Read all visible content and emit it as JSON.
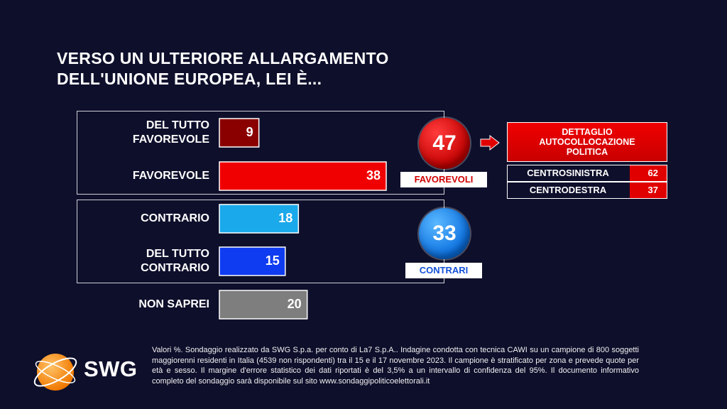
{
  "title": {
    "line1": "VERSO UN ULTERIORE ALLARGAMENTO",
    "line2": "DELL'UNIONE EUROPEA, LEI È..."
  },
  "chart_data": {
    "type": "bar",
    "orientation": "horizontal",
    "categories": [
      "DEL TUTTO FAVOREVOLE",
      "FAVOREVOLE",
      "CONTRARIO",
      "DEL TUTTO CONTRARIO",
      "NON SAPREI"
    ],
    "category_lines": [
      [
        "DEL TUTTO",
        "FAVOREVOLE"
      ],
      [
        "FAVOREVOLE"
      ],
      [
        "CONTRARIO"
      ],
      [
        "DEL TUTTO",
        "CONTRARIO"
      ],
      [
        "NON SAPREI"
      ]
    ],
    "values": [
      9,
      38,
      18,
      15,
      20
    ],
    "colors": [
      "#8a0000",
      "#f00000",
      "#1aa9ea",
      "#0f3cf0",
      "#7e7e7e"
    ],
    "unit": "%",
    "xlim": [
      0,
      38
    ]
  },
  "summary": {
    "favorevoli": {
      "value": "47",
      "label": "FAVOREVOLI"
    },
    "contrari": {
      "value": "33",
      "label": "CONTRARI"
    }
  },
  "detail": {
    "title_lines": [
      "DETTAGLIO",
      "AUTOCOLLOCAZIONE",
      "POLITICA"
    ],
    "rows": [
      {
        "label": "CENTROSINISTRA",
        "value": "62"
      },
      {
        "label": "CENTRODESTRA",
        "value": "37"
      }
    ]
  },
  "footnote": "Valori %. Sondaggio realizzato da SWG S.p.a. per conto di La7 S.p.A.. Indagine condotta con tecnica CAWI su un campione di 800 soggetti maggiorenni residenti in Italia (4539 non rispondenti) tra il 15 e il 17 novembre 2023. Il campione è stratificato per zona e prevede quote per età e sesso. Il margine d'errore statistico dei dati riportati è del 3,5% a un intervallo di confidenza del 95%. Il documento informativo completo del sondaggio sarà disponibile sul sito www.sondaggipoliticoelettorali.it",
  "logo": {
    "text": "SWG"
  },
  "colors": {
    "background": "#0e0f2b",
    "red": "#e00000",
    "blue": "#0a6fe0"
  }
}
